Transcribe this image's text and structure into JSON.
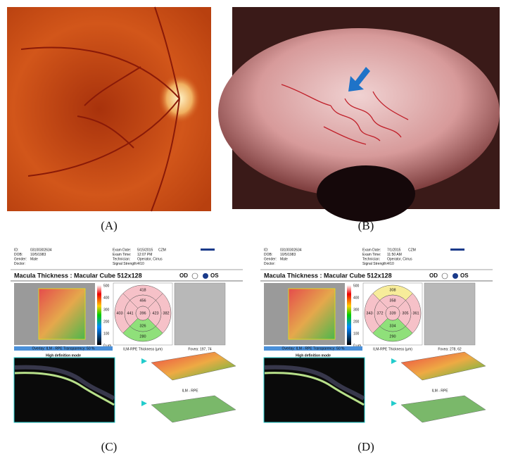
{
  "panels": [
    {
      "label": "(A)"
    },
    {
      "label": "(B)"
    },
    {
      "label": "(C)",
      "report": {
        "left": [
          {
            "key": "ID:",
            "value": "03100302634"
          },
          {
            "key": "DOB:",
            "value": "10/5/1983"
          },
          {
            "key": "Gender:",
            "value": "Male"
          },
          {
            "key": "Doctor:"
          }
        ],
        "right": [
          {
            "key": "Exam Date:",
            "value": "5/15/2015"
          },
          {
            "key": "Exam Time:",
            "value": "12:07 PM"
          },
          {
            "key": "Technician:",
            "value": "Operator, Cirrus"
          },
          {
            "key": "Signal Strength:",
            "value": "4/10"
          }
        ],
        "brand": "CZM",
        "title": "Macula Thickness : Macular Cube 512x128",
        "od": "OD",
        "os": "OS",
        "colorbar": [
          "500",
          "400",
          "300",
          "200",
          "100",
          "0 µm"
        ],
        "overlay": "Overlay: ILM - RPE   Transparency: 50 %",
        "sectors": {
          "outer_top": {
            "value": 418,
            "color": "#f6c1c8"
          },
          "inner_top": {
            "value": 456,
            "color": "#f6c1c8"
          },
          "outer_left": {
            "value": 403,
            "color": "#f6c1c8"
          },
          "inner_left": {
            "value": 441,
            "color": "#f6c1c8"
          },
          "center": {
            "value": 396,
            "color": "#f6c1c8"
          },
          "inner_right": {
            "value": 423,
            "color": "#f6c1c8"
          },
          "outer_right": {
            "value": 382,
            "color": "#f6c1c8"
          },
          "inner_bottom": {
            "value": 326,
            "color": "#8fe07a"
          },
          "outer_bottom": {
            "value": 280,
            "color": "#8fe07a"
          }
        },
        "thickness_label": "ILM-RPE Thickness (µm)",
        "fovea": "Fovea: 197, 74",
        "hd": "High definition mode",
        "surface": "ILM - RPE"
      }
    },
    {
      "label": "(D)",
      "report": {
        "left": [
          {
            "key": "ID:",
            "value": "03100302634"
          },
          {
            "key": "DOB:",
            "value": "10/5/1983"
          },
          {
            "key": "Gender:",
            "value": "Male"
          },
          {
            "key": "Doctor:"
          }
        ],
        "right": [
          {
            "key": "Exam Date:",
            "value": "7/1/2015"
          },
          {
            "key": "Exam Time:",
            "value": "11:50 AM"
          },
          {
            "key": "Technician:",
            "value": "Operator, Cirrus"
          },
          {
            "key": "Signal Strength:",
            "value": "4/10"
          }
        ],
        "brand": "CZM",
        "title": "Macula Thickness : Macular Cube 512x128",
        "od": "OD",
        "os": "OS",
        "colorbar": [
          "500",
          "400",
          "300",
          "200",
          "100",
          "0 µm"
        ],
        "overlay": "Overlay: ILM - RPE   Transparency: 50 %",
        "sectors": {
          "outer_top": {
            "value": 308,
            "color": "#f7ec9a"
          },
          "inner_top": {
            "value": 358,
            "color": "#f6c1c8"
          },
          "outer_left": {
            "value": 343,
            "color": "#f6c1c8"
          },
          "inner_left": {
            "value": 372,
            "color": "#f6c1c8"
          },
          "center": {
            "value": 339,
            "color": "#f6c1c8"
          },
          "inner_right": {
            "value": 305,
            "color": "#f6c1c8"
          },
          "outer_right": {
            "value": 361,
            "color": "#f6c1c8"
          },
          "inner_bottom": {
            "value": 334,
            "color": "#8fe07a"
          },
          "outer_bottom": {
            "value": 290,
            "color": "#8fe07a"
          }
        },
        "thickness_label": "ILM-RPE Thickness (µm)",
        "fovea": "Fovea: 278, 62",
        "hd": "High definition mode",
        "surface": "ILM - RPE"
      }
    }
  ]
}
